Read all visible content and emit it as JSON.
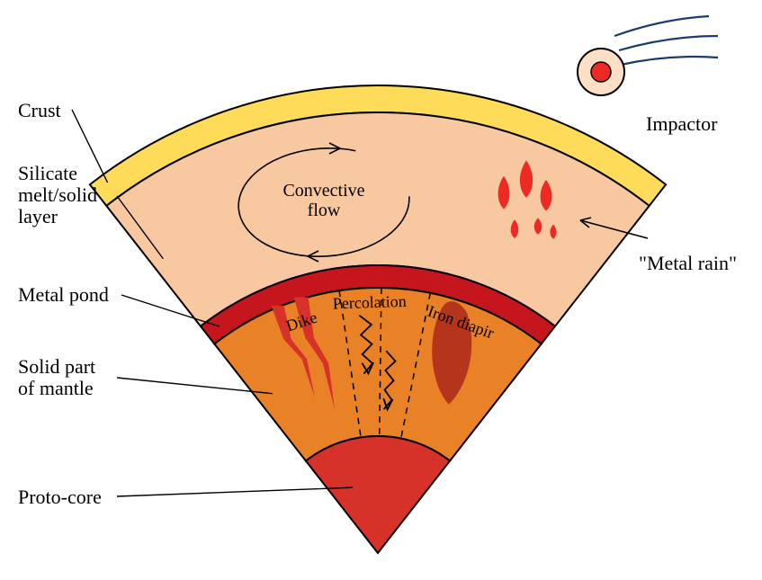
{
  "diagram": {
    "type": "infographic",
    "title": null,
    "labels": {
      "crust": "Crust",
      "silicate_melt": "Silicate melt/solid layer",
      "metal_pond": "Metal pond",
      "solid_part": "Solid part of mantle",
      "proto_core": "Proto-core",
      "impactor": "Impactor",
      "metal_rain": "\"Metal rain\"",
      "convective_flow": "Convective\nflow",
      "dike": "Dike",
      "percolation": "Percolation",
      "iron_diapir": "Iron diapir"
    },
    "colors": {
      "background": "#ffffff",
      "crust_fill": "#fedc59",
      "silicate_fill": "#f8c8a0",
      "metal_pond_fill": "#c4161c",
      "solid_mantle_fill": "#e98127",
      "proto_core_fill": "#d6322a",
      "impactor_outer": "#fcdfc4",
      "impactor_inner": "#ee2a24",
      "impactor_tail": "#1b3d6d",
      "blob_red": "#ee2a24",
      "dike_fill": "#d6322a",
      "diapir_fill": "#b5341c",
      "outline": "#000000",
      "text": "#000000"
    },
    "geometry": {
      "apex": [
        420,
        615
      ],
      "radii": {
        "crust_outer": 520,
        "crust_inner": 490,
        "silicate_inner": 320,
        "metal_pond_inner": 295,
        "proto_core": 130
      },
      "half_angle_deg": 38,
      "stroke_width": 2
    },
    "font": {
      "external_label_pt": 22,
      "internal_label_pt": 20,
      "section_label_pt": 18
    }
  }
}
